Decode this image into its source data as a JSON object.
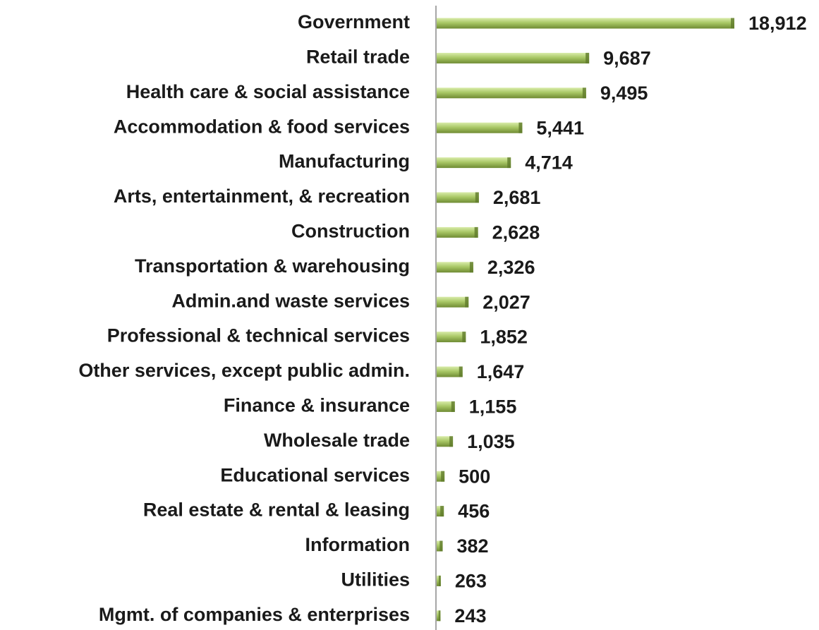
{
  "chart_data": {
    "type": "bar",
    "orientation": "horizontal",
    "categories": [
      "Government",
      "Retail trade",
      "Health care & social assistance",
      "Accommodation & food services",
      "Manufacturing",
      "Arts, entertainment, & recreation",
      "Construction",
      "Transportation & warehousing",
      "Admin.and waste services",
      "Professional & technical services",
      "Other services, except public admin.",
      "Finance & insurance",
      "Wholesale trade",
      "Educational services",
      "Real estate & rental & leasing",
      "Information",
      "Utilities",
      "Mgmt. of companies & enterprises"
    ],
    "values": [
      18912,
      9687,
      9495,
      5441,
      4714,
      2681,
      2628,
      2326,
      2027,
      1852,
      1647,
      1155,
      1035,
      500,
      456,
      382,
      263,
      243
    ],
    "value_labels": [
      "18,912",
      "9,687",
      "9,495",
      "5,441",
      "4,714",
      "2,681",
      "2,628",
      "2,326",
      "2,027",
      "1,852",
      "1,647",
      "1,155",
      "1,035",
      "500",
      "456",
      "382",
      "263",
      "243"
    ],
    "color": "#9bbb59"
  }
}
